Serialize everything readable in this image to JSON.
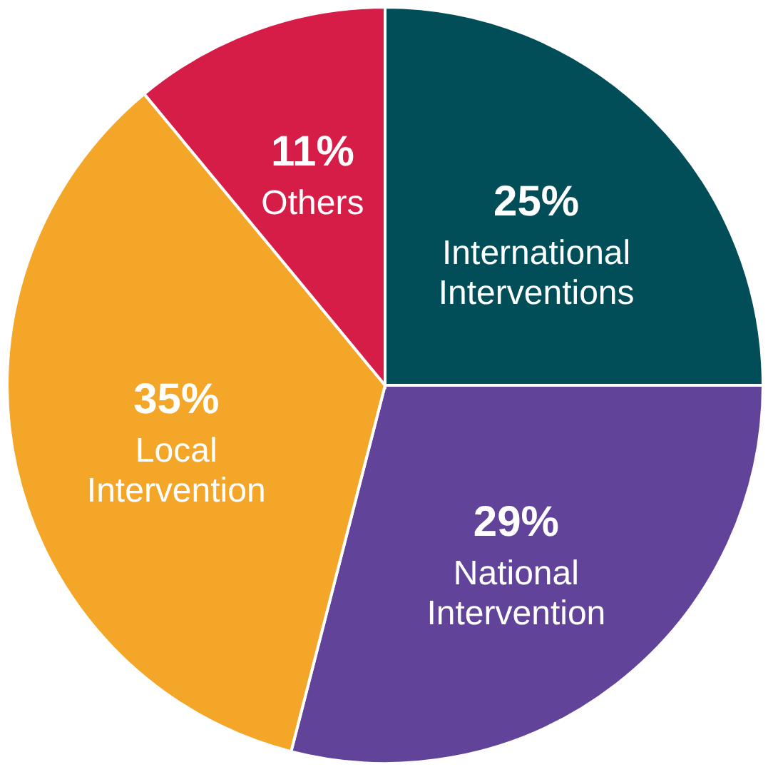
{
  "chart_data": {
    "type": "pie",
    "categories": [
      "International Interventions",
      "National Intervention",
      "Local Intervention",
      "Others"
    ],
    "values": [
      25,
      29,
      35,
      11
    ],
    "colors": [
      "#024e58",
      "#61449a",
      "#f4a629",
      "#d51d47"
    ],
    "value_labels": [
      "25%",
      "29%",
      "35%",
      "11%"
    ],
    "legend": false
  }
}
